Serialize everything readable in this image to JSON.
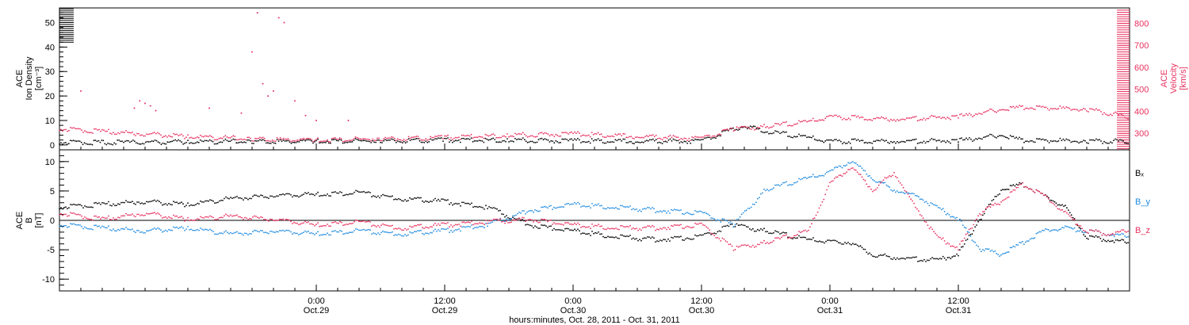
{
  "colors": {
    "black": "#000000",
    "pink": "#e8315f",
    "blue": "#1f8be0"
  },
  "chart_data": [
    {
      "type": "scatter",
      "panel": "top",
      "ylabel_left": [
        "ACE",
        "Ion Density",
        "[cm⁻³]"
      ],
      "ylabel_right": [
        "ACE",
        "Velocity",
        "[km/s]"
      ],
      "yticks_left": [
        "0",
        "10",
        "20",
        "30",
        "40",
        "50"
      ],
      "yticks_right": [
        "300",
        "400",
        "500",
        "600",
        "700",
        "800"
      ],
      "ylim_left": [
        -2,
        56
      ],
      "ylim_right": [
        225,
        870
      ],
      "series": [
        {
          "role": "density",
          "axis": "left",
          "color": "black",
          "x": [
            0,
            6,
            12,
            18,
            24,
            30,
            36,
            42,
            48,
            54,
            60,
            64,
            66,
            70,
            72,
            78,
            84,
            88,
            90,
            96,
            100
          ],
          "y": [
            0.5,
            0.5,
            0.8,
            1.0,
            1.0,
            1.2,
            1.5,
            1.5,
            1.2,
            1.0,
            1.0,
            7.5,
            5.0,
            2.5,
            1.0,
            1.0,
            1.2,
            3.5,
            1.5,
            1.0,
            1.0
          ]
        },
        {
          "role": "velocity",
          "axis": "left",
          "color": "pink",
          "x": [
            0,
            4,
            8,
            12,
            18,
            24,
            30,
            36,
            42,
            48,
            54,
            60,
            63,
            66,
            70,
            72,
            78,
            84,
            88,
            90,
            96,
            100
          ],
          "y": [
            6,
            5,
            4,
            3,
            2,
            1.5,
            2,
            2.5,
            3.5,
            4,
            3,
            2,
            6,
            7,
            9,
            11,
            10,
            11,
            14,
            15,
            14,
            11
          ]
        },
        {
          "role": "density-outliers",
          "axis": "left",
          "color": "pink",
          "x": [
            2,
            7,
            7.5,
            8,
            8.5,
            9,
            14,
            17,
            18,
            18.5,
            19,
            19.5,
            20,
            20.5,
            21,
            22,
            23,
            24,
            27
          ],
          "y": [
            22,
            15,
            18,
            17,
            16,
            14,
            15,
            13,
            38,
            54,
            25,
            20,
            22,
            52,
            50,
            18,
            12,
            10,
            10
          ]
        }
      ]
    },
    {
      "type": "line",
      "panel": "bottom",
      "ylabel_left": [
        "ACE",
        "B",
        "[nT]"
      ],
      "yticks_left": [
        "-10",
        "-5",
        "0",
        "5",
        "10"
      ],
      "ylim": [
        -12,
        12
      ],
      "series": [
        {
          "name": "Bₓ",
          "color": "black",
          "x": [
            0,
            4,
            8,
            12,
            16,
            20,
            24,
            28,
            32,
            36,
            40,
            44,
            48,
            52,
            56,
            60,
            63,
            66,
            70,
            74,
            76,
            78,
            82,
            84,
            86,
            88,
            90,
            92,
            94,
            96,
            98,
            100
          ],
          "y": [
            2,
            2.5,
            3,
            2.5,
            3.5,
            4,
            4.2,
            4.5,
            3.5,
            3,
            2,
            -1,
            -2,
            -3,
            -3.5,
            -3,
            -1,
            -2,
            -3.5,
            -4,
            -6,
            -6.5,
            -7,
            -6,
            0,
            5,
            6,
            4,
            2,
            -3,
            -3.5,
            -4
          ]
        },
        {
          "name": "B_y",
          "color": "blue",
          "x": [
            0,
            4,
            8,
            12,
            16,
            20,
            24,
            28,
            32,
            36,
            40,
            44,
            48,
            52,
            56,
            60,
            63,
            66,
            70,
            72,
            74,
            76,
            78,
            80,
            82,
            84,
            86,
            88,
            90,
            92,
            94,
            96,
            98,
            100
          ],
          "y": [
            -1,
            -1.5,
            -2,
            -1.5,
            -2.5,
            -2,
            -2.5,
            -2,
            -2.5,
            -2,
            -1,
            1.5,
            2.5,
            2,
            1.5,
            1,
            -1,
            5,
            7,
            8,
            10,
            7,
            5,
            4,
            2,
            0,
            -5,
            -6,
            -4,
            -2,
            -1.5,
            -2,
            -2.5,
            -3
          ]
        },
        {
          "name": "B_z",
          "color": "pink",
          "x": [
            0,
            4,
            8,
            12,
            16,
            20,
            24,
            28,
            32,
            36,
            40,
            44,
            48,
            52,
            56,
            60,
            63,
            66,
            70,
            72,
            74,
            76,
            78,
            80,
            82,
            84,
            86,
            88,
            90,
            92,
            94,
            96,
            98,
            100
          ],
          "y": [
            1,
            0,
            1,
            0,
            0.5,
            0,
            -1,
            -0.5,
            -1.5,
            -1,
            -0.5,
            0,
            -1,
            -1.5,
            -1.5,
            -1,
            -5,
            -4,
            -2,
            6,
            9,
            5,
            8,
            2,
            -3,
            -5,
            1,
            3,
            6,
            4,
            1,
            -2,
            -2.5,
            -2
          ]
        }
      ]
    }
  ],
  "x_axis": {
    "ticks": [
      {
        "time": "0:00",
        "date": "Oct.29",
        "pos": 24
      },
      {
        "time": "12:00",
        "date": "Oct.29",
        "pos": 36
      },
      {
        "time": "0:00",
        "date": "Oct.30",
        "pos": 48
      },
      {
        "time": "12:00",
        "date": "Oct.30",
        "pos": 60
      },
      {
        "time": "0:00",
        "date": "Oct.31",
        "pos": 72
      },
      {
        "time": "12:00",
        "date": "Oct.31",
        "pos": 84
      }
    ],
    "xlim": [
      0,
      100
    ],
    "title": "hours:minutes, Oct. 28, 2011 - Oct. 31, 2011"
  },
  "legend": [
    {
      "text": "Bₓ",
      "color": "black"
    },
    {
      "text": "B_y",
      "color": "blue"
    },
    {
      "text": "B_z",
      "color": "pink"
    }
  ]
}
